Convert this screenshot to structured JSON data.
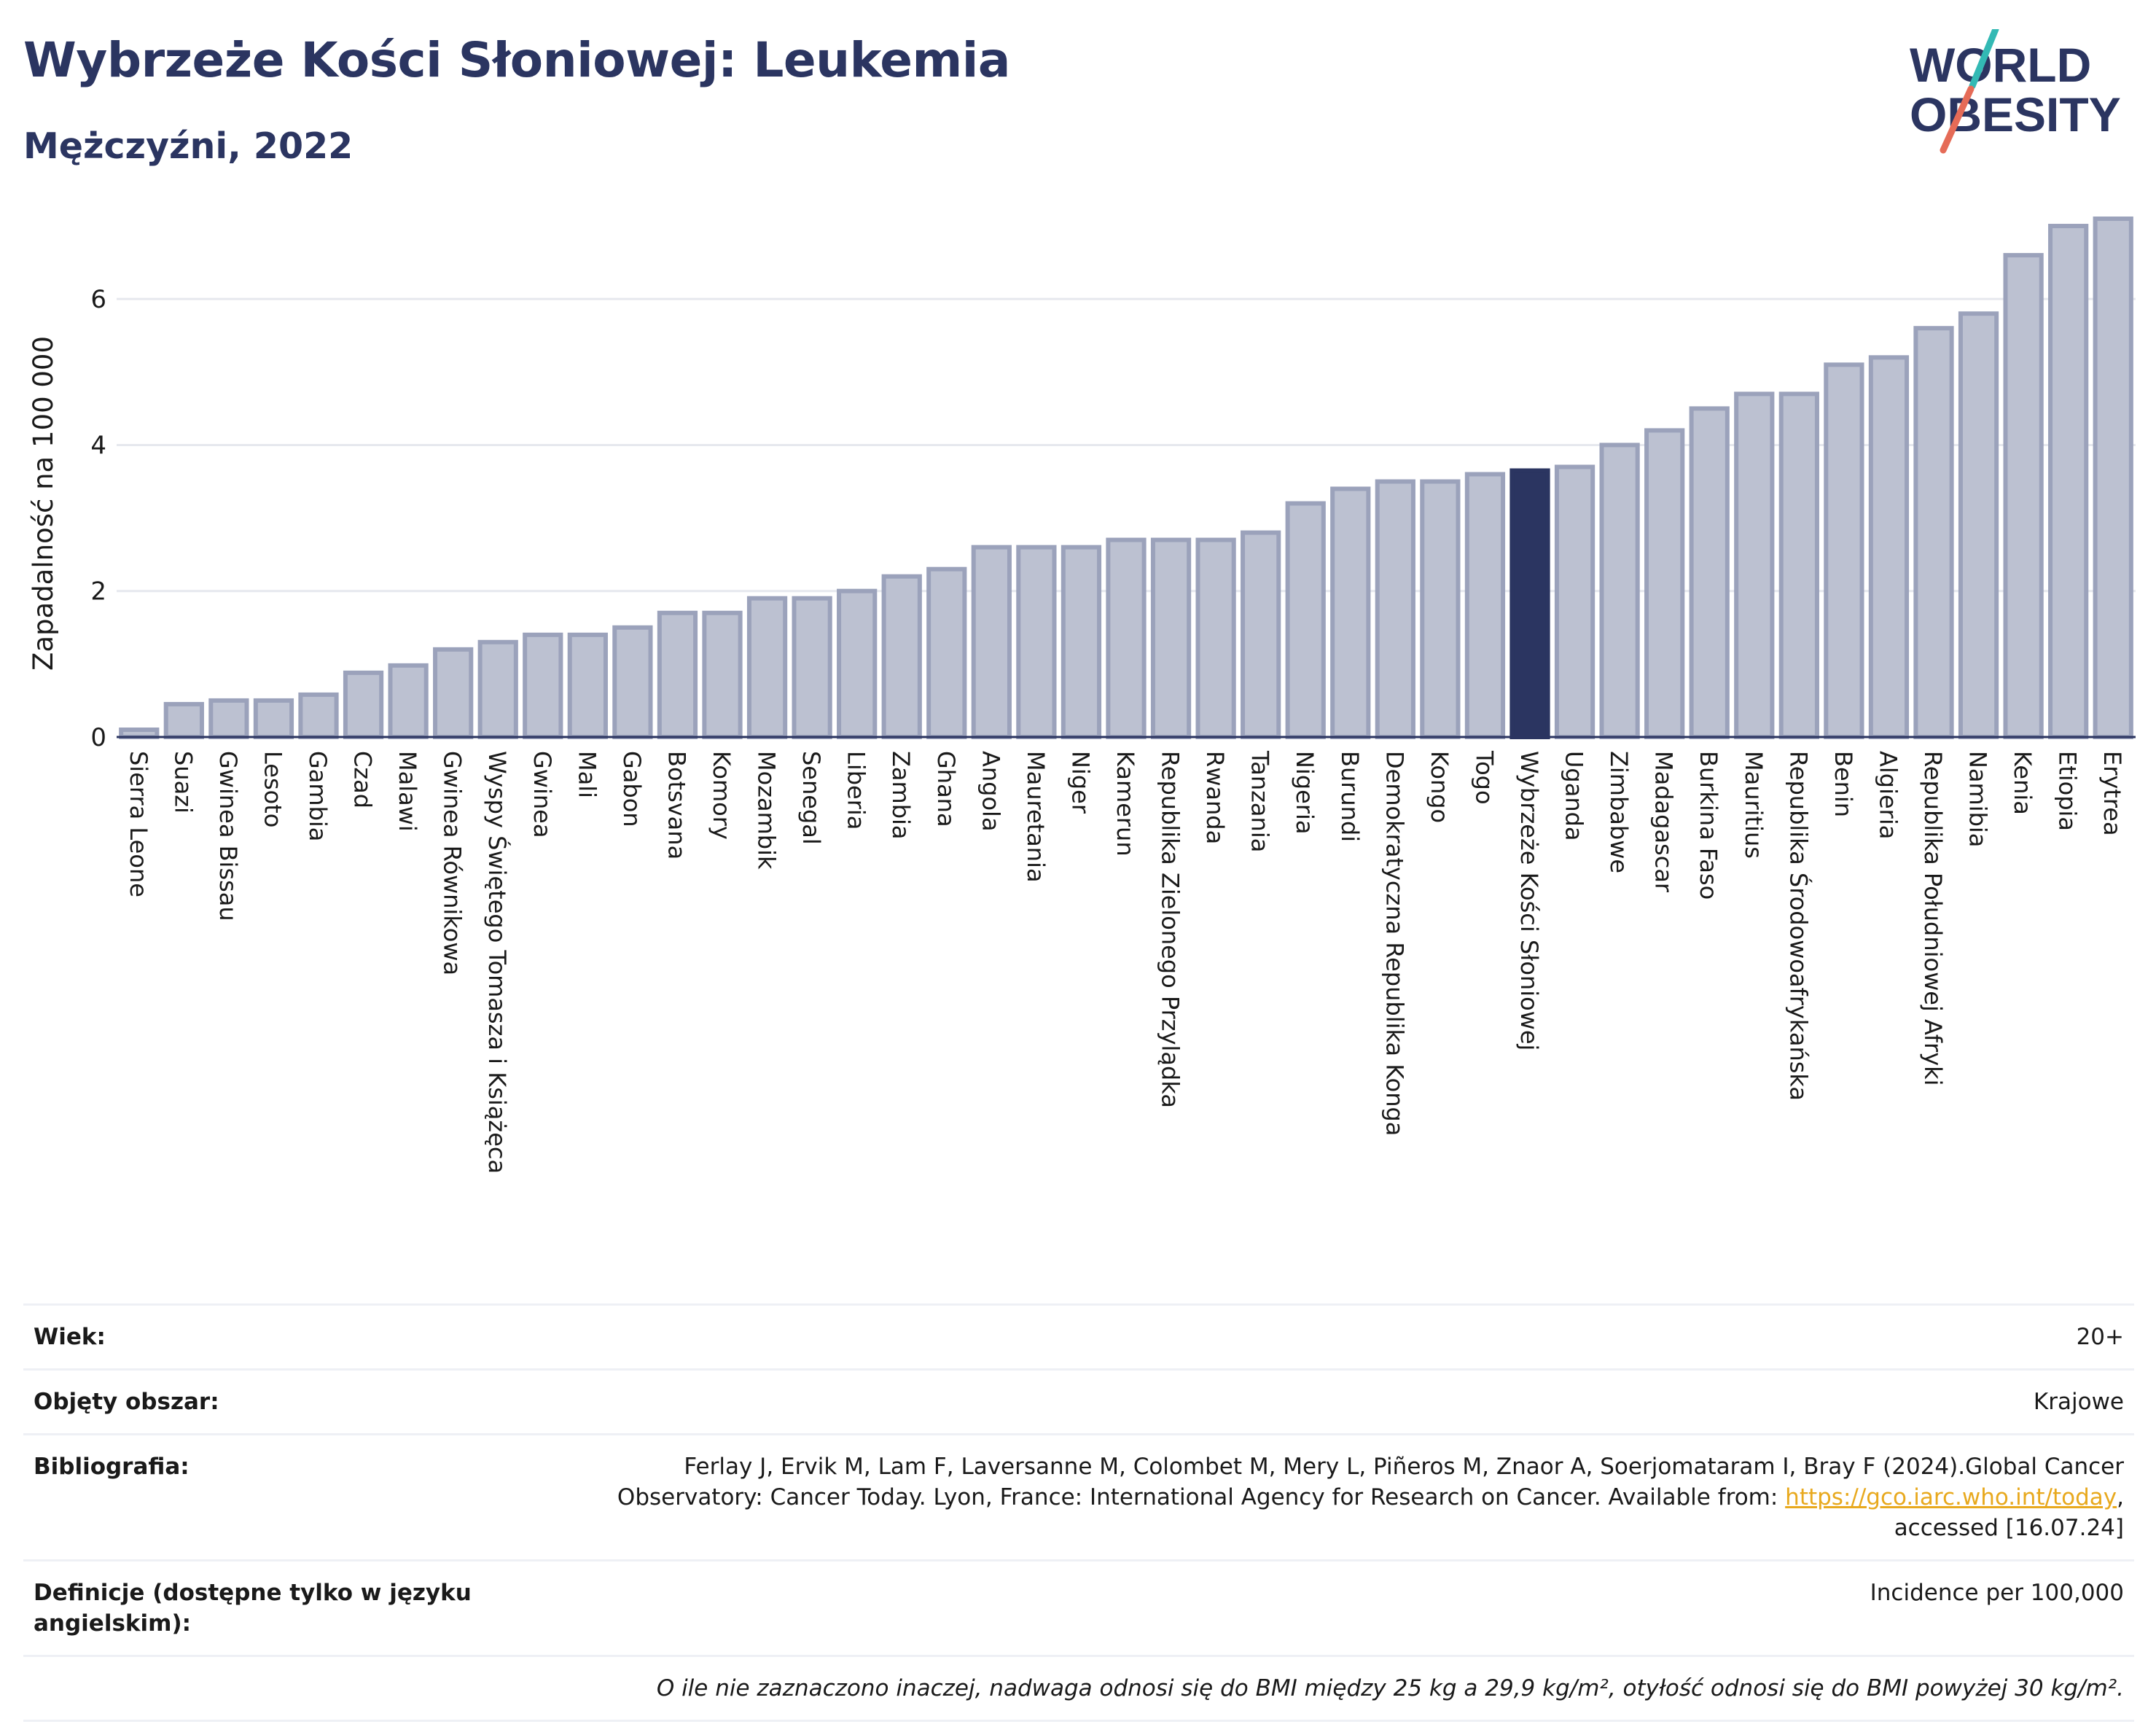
{
  "header": {
    "title": "Wybrzeże Kości Słoniowej: Leukemia",
    "subtitle": "Mężczyźni, 2022",
    "logo_line1": "WORLD",
    "logo_line2": "OBESITY"
  },
  "colors": {
    "bar": "#bcc1d1",
    "bar_border": "#9ba2bb",
    "highlight": "#2b3561",
    "text_dark": "#2b3561",
    "grid": "#e6e8ee",
    "link": "#e8a91e"
  },
  "chart_data": {
    "type": "bar",
    "title": "",
    "xlabel": "",
    "ylabel": "Zapadalność na 100 000",
    "ylim": [
      0,
      7.2
    ],
    "yticks": [
      0,
      2,
      4,
      6
    ],
    "grid": true,
    "highlight": "Wybrzeże Kości Słoniowej",
    "categories": [
      "Sierra Leone",
      "Suazi",
      "Gwinea Bissau",
      "Lesoto",
      "Gambia",
      "Czad",
      "Malawi",
      "Gwinea Równikowa",
      "Wyspy Świętego Tomasza i Książęca",
      "Gwinea",
      "Mali",
      "Gabon",
      "Botsvana",
      "Komory",
      "Mozambik",
      "Senegal",
      "Liberia",
      "Zambia",
      "Ghana",
      "Angola",
      "Mauretania",
      "Niger",
      "Kamerun",
      "Republika Zielonego Przylądka",
      "Rwanda",
      "Tanzania",
      "Nigeria",
      "Burundi",
      "Demokratyczna Republika Konga",
      "Kongo",
      "Togo",
      "Wybrzeże Kości Słoniowej",
      "Uganda",
      "Zimbabwe",
      "Madagascar",
      "Burkina Faso",
      "Mauritius",
      "Republika Środowoafrykańska",
      "Benin",
      "Algieria",
      "Republika Południowej Afryki",
      "Namibia",
      "Kenia",
      "Etiopia",
      "Erytrea"
    ],
    "values": [
      0.1,
      0.45,
      0.5,
      0.5,
      0.58,
      0.88,
      0.98,
      1.2,
      1.3,
      1.4,
      1.4,
      1.5,
      1.7,
      1.7,
      1.9,
      1.9,
      2.0,
      2.2,
      2.3,
      2.6,
      2.6,
      2.6,
      2.7,
      2.7,
      2.7,
      2.8,
      3.2,
      3.4,
      3.5,
      3.5,
      3.6,
      3.65,
      3.7,
      4.0,
      4.2,
      4.5,
      4.7,
      4.7,
      5.1,
      5.2,
      5.6,
      5.8,
      6.6,
      7.0,
      7.1
    ]
  },
  "info": {
    "age_label": "Wiek:",
    "age_value": "20+",
    "area_label": "Objęty obszar:",
    "area_value": "Krajowe",
    "bib_label": "Bibliografia:",
    "bib_line1": "Ferlay J, Ervik M, Lam F, Laversanne M, Colombet M, Mery L, Piñeros M, Znaor A, Soerjomataram I, Bray F (2024).Global Cancer",
    "bib_line2": "Observatory: Cancer Today. Lyon, France: International Agency for Research on Cancer. Available from: ",
    "bib_link": "https://gco.iarc.who.int/today",
    "bib_line2_end": ",",
    "bib_line3": "accessed [16.07.24]",
    "def_label": "Definicje (dostępne tylko w języku angielskim):",
    "def_value": "Incidence per 100,000",
    "note": "O ile nie zaznaczono inaczej, nadwaga odnosi się do BMI między 25 kg a 29,9 kg/m², otyłość odnosi się do BMI powyżej 30 kg/m²."
  }
}
